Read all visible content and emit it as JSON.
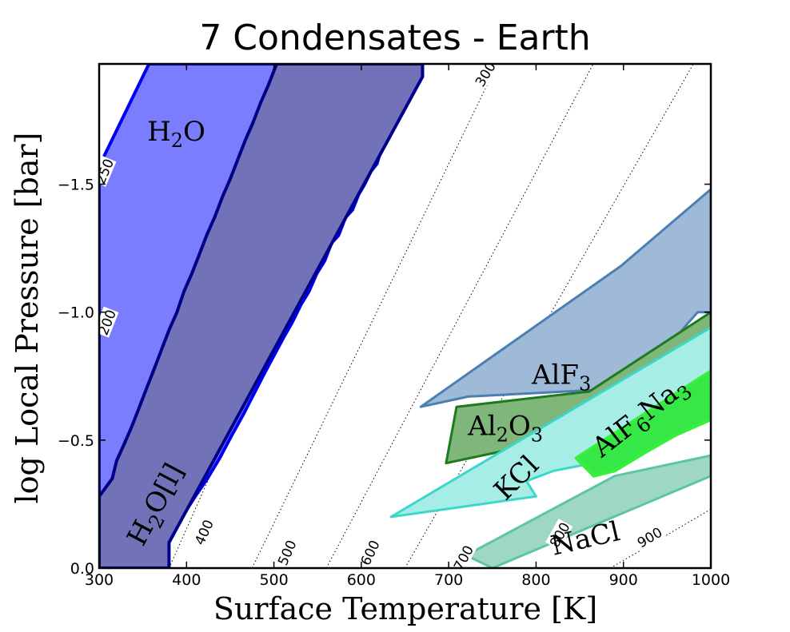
{
  "chart_data": {
    "type": "area",
    "title": "7 Condensates - Earth",
    "xlabel": "Surface Temperature [K]",
    "ylabel": "log Local Pressure [bar]",
    "xlim": [
      300,
      1000
    ],
    "ylim": [
      0.0,
      -1.97
    ],
    "yaxis_inverted": true,
    "xticks": [
      {
        "value": 300,
        "label": "300"
      },
      {
        "value": 400,
        "label": "400"
      },
      {
        "value": 500,
        "label": "500"
      },
      {
        "value": 600,
        "label": "600"
      },
      {
        "value": 700,
        "label": "700"
      },
      {
        "value": 800,
        "label": "800"
      },
      {
        "value": 900,
        "label": "900"
      },
      {
        "value": 1000,
        "label": "1000"
      }
    ],
    "yticks": [
      {
        "value": 0.0,
        "label": "0.0"
      },
      {
        "value": -0.5,
        "label": "−0.5"
      },
      {
        "value": -1.0,
        "label": "−1.0"
      },
      {
        "value": -1.5,
        "label": "−1.5"
      }
    ],
    "grid": false,
    "isotherms": [
      {
        "label": "250",
        "points": [
          [
            300,
            -1.5
          ],
          [
            362,
            -2.0
          ]
        ],
        "label_at": [
          306,
          -1.55
        ],
        "show_label": true
      },
      {
        "label": "300",
        "points": [
          [
            300,
            -1.04
          ],
          [
            520,
            -2.3
          ]
        ],
        "label_at": [
          742,
          -1.93
        ],
        "show_label": true
      },
      {
        "label": "200",
        "points": [
          [
            300,
            -0.8
          ],
          [
            438,
            -2.0
          ]
        ],
        "label_at": [
          309,
          -0.96
        ],
        "show_label": true
      },
      {
        "label": "400",
        "points": [
          [
            300,
            -0.3
          ],
          [
            525,
            -2.0
          ]
        ],
        "label_at": [
          420,
          -0.14
        ],
        "show_label": true
      },
      {
        "label": "500",
        "points": [
          [
            380,
            0.0
          ],
          [
            640,
            -2.0
          ]
        ],
        "label_at": [
          515,
          -0.06
        ],
        "show_label": true
      },
      {
        "label": "600",
        "points": [
          [
            475,
            0.0
          ],
          [
            760,
            -2.0
          ]
        ],
        "label_at": [
          610,
          -0.06
        ],
        "show_label": true
      },
      {
        "label": "700",
        "points": [
          [
            560,
            0.0
          ],
          [
            870,
            -2.0
          ]
        ],
        "label_at": [
          717,
          -0.04
        ],
        "show_label": true
      },
      {
        "label": "800",
        "points": [
          [
            650,
            0.0
          ],
          [
            985,
            -2.0
          ]
        ],
        "label_at": [
          827,
          -0.13
        ],
        "show_label": true
      },
      {
        "label": "900",
        "points": [
          [
            885,
            0.0
          ],
          [
            1000,
            -0.23
          ]
        ],
        "label_at": [
          930,
          -0.12
        ],
        "show_label": true
      }
    ],
    "series": [
      {
        "name": "H2O",
        "fill": "#7b7dff",
        "stroke": "#0000ee",
        "stroke_width": 4,
        "points": [
          [
            300,
            -0.28
          ],
          [
            300,
            -1.57
          ],
          [
            357,
            -1.97
          ],
          [
            670,
            -1.97
          ],
          [
            670,
            -1.92
          ],
          [
            660,
            -1.9
          ],
          [
            655,
            -1.85
          ],
          [
            648,
            -1.82
          ],
          [
            644,
            -1.76
          ],
          [
            636,
            -1.73
          ],
          [
            631,
            -1.68
          ],
          [
            624,
            -1.65
          ],
          [
            618,
            -1.58
          ],
          [
            611,
            -1.55
          ],
          [
            604,
            -1.5
          ],
          [
            597,
            -1.46
          ],
          [
            590,
            -1.4
          ],
          [
            582,
            -1.37
          ],
          [
            574,
            -1.3
          ],
          [
            566,
            -1.27
          ],
          [
            558,
            -1.2
          ],
          [
            549,
            -1.15
          ],
          [
            540,
            -1.08
          ],
          [
            531,
            -1.03
          ],
          [
            521,
            -0.96
          ],
          [
            511,
            -0.9
          ],
          [
            500,
            -0.83
          ],
          [
            489,
            -0.76
          ],
          [
            477,
            -0.68
          ],
          [
            465,
            -0.6
          ],
          [
            452,
            -0.52
          ],
          [
            438,
            -0.43
          ],
          [
            424,
            -0.35
          ],
          [
            410,
            -0.28
          ],
          [
            395,
            -0.2
          ],
          [
            380,
            -0.1
          ],
          [
            330,
            -0.1
          ],
          [
            326,
            -0.18
          ],
          [
            318,
            -0.2
          ],
          [
            314,
            -0.25
          ],
          [
            308,
            -0.28
          ]
        ]
      },
      {
        "name": "H2O[l]",
        "fill": "#7272b8",
        "stroke": "#00008b",
        "stroke_width": 4,
        "points": [
          [
            300,
            0.0
          ],
          [
            300,
            -0.28
          ],
          [
            315,
            -0.35
          ],
          [
            320,
            -0.42
          ],
          [
            328,
            -0.48
          ],
          [
            337,
            -0.55
          ],
          [
            345,
            -0.62
          ],
          [
            354,
            -0.7
          ],
          [
            362,
            -0.77
          ],
          [
            371,
            -0.85
          ],
          [
            380,
            -0.93
          ],
          [
            389,
            -1.0
          ],
          [
            397,
            -1.08
          ],
          [
            406,
            -1.15
          ],
          [
            414,
            -1.22
          ],
          [
            423,
            -1.3
          ],
          [
            432,
            -1.37
          ],
          [
            441,
            -1.45
          ],
          [
            450,
            -1.52
          ],
          [
            459,
            -1.6
          ],
          [
            467,
            -1.67
          ],
          [
            476,
            -1.74
          ],
          [
            485,
            -1.82
          ],
          [
            494,
            -1.89
          ],
          [
            503,
            -1.97
          ],
          [
            670,
            -1.97
          ],
          [
            670,
            -1.92
          ],
          [
            380,
            -0.1
          ],
          [
            380,
            0.0
          ]
        ]
      },
      {
        "name": "AlF3",
        "fill": "#9fbad7",
        "stroke": "#4a7fb3",
        "stroke_width": 3,
        "points": [
          [
            668,
            -0.63
          ],
          [
            897,
            -1.18
          ],
          [
            1000,
            -1.48
          ],
          [
            1000,
            -1.0
          ],
          [
            985,
            -1.0
          ],
          [
            972,
            -0.95
          ],
          [
            960,
            -0.9
          ],
          [
            945,
            -0.85
          ],
          [
            930,
            -0.8
          ],
          [
            916,
            -0.77
          ],
          [
            903,
            -0.74
          ],
          [
            890,
            -0.7
          ],
          [
            722,
            -0.67
          ],
          [
            668,
            -0.63
          ]
        ]
      },
      {
        "name": "Al2O3",
        "fill": "#7fb679",
        "stroke": "#1e7a1e",
        "stroke_width": 3,
        "points": [
          [
            697,
            -0.41
          ],
          [
            709,
            -0.63
          ],
          [
            861,
            -0.69
          ],
          [
            1000,
            -1.0
          ],
          [
            1000,
            -0.63
          ],
          [
            697,
            -0.41
          ]
        ]
      },
      {
        "name": "KCl",
        "fill": "#a6ede6",
        "stroke": "#3cd7cb",
        "stroke_width": 3,
        "points": [
          [
            634,
            -0.2
          ],
          [
            1000,
            -0.94
          ],
          [
            1000,
            -0.66
          ],
          [
            946,
            -0.56
          ],
          [
            880,
            -0.42
          ],
          [
            820,
            -0.38
          ],
          [
            789,
            -0.34
          ],
          [
            800,
            -0.28
          ],
          [
            634,
            -0.2
          ]
        ]
      },
      {
        "name": "AlF6Na3",
        "fill": "#35e845",
        "stroke": "#37f03c",
        "stroke_width": 4,
        "points": [
          [
            846,
            -0.43
          ],
          [
            1000,
            -0.77
          ],
          [
            1000,
            -0.58
          ],
          [
            960,
            -0.52
          ],
          [
            924,
            -0.45
          ],
          [
            890,
            -0.38
          ],
          [
            866,
            -0.36
          ],
          [
            846,
            -0.43
          ]
        ]
      },
      {
        "name": "NaCl",
        "fill": "#9ed7c4",
        "stroke": "#5cc6a4",
        "stroke_width": 3,
        "points": [
          [
            720,
            -0.05
          ],
          [
            890,
            -0.36
          ],
          [
            1000,
            -0.44
          ],
          [
            1000,
            -0.36
          ],
          [
            750,
            0.0
          ],
          [
            720,
            -0.05
          ]
        ]
      }
    ],
    "region_labels": [
      {
        "series": "H2O",
        "text": "H",
        "sub": "2",
        "rest": "O",
        "at": [
          355,
          -1.67
        ],
        "rotate": 0
      },
      {
        "series": "H2O[l]",
        "text": "H",
        "sub": "2",
        "rest": "O[l]",
        "at": [
          350,
          -0.08
        ],
        "rotate": -62
      },
      {
        "series": "AlF3",
        "text": "AlF",
        "sub": "3",
        "rest": "",
        "at": [
          795,
          -0.72
        ],
        "rotate": 0
      },
      {
        "series": "Al2O3",
        "text": "Al",
        "sub": "2",
        "rest": "O",
        "sub2": "3",
        "at": [
          722,
          -0.52
        ],
        "rotate": 0
      },
      {
        "series": "KCl",
        "text": "KCl",
        "sub": "",
        "rest": "",
        "at": [
          765,
          -0.26
        ],
        "rotate": -45
      },
      {
        "series": "AlF6Na3",
        "text": "AlF",
        "sub": "6",
        "rest": "Na",
        "sub2": "3",
        "at": [
          875,
          -0.43
        ],
        "rotate": -38
      },
      {
        "series": "NaCl",
        "text": "NaCl",
        "sub": "",
        "rest": "",
        "at": [
          820,
          -0.05
        ],
        "rotate": -13
      }
    ]
  }
}
